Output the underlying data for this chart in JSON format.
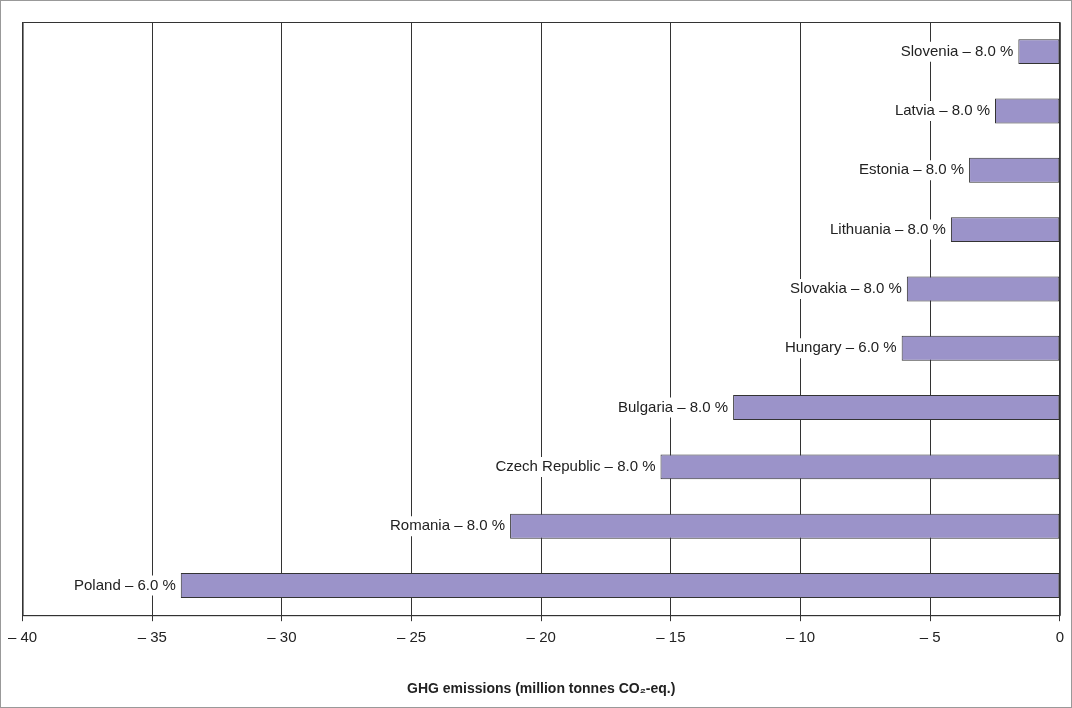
{
  "chart_data": {
    "type": "bar",
    "orientation": "horizontal",
    "categories": [
      "Slovenia – 8.0 %",
      "Latvia – 8.0 %",
      "Estonia – 8.0 %",
      "Lithuania – 8.0 %",
      "Slovakia – 8.0 %",
      "Hungary – 6.0 %",
      "Bulgaria – 8.0 %",
      "Czech Republic – 8.0 %",
      "Romania – 8.0 %",
      "Poland – 6.0 %"
    ],
    "values": [
      -1.6,
      -2.5,
      -3.5,
      -4.2,
      -5.9,
      -6.1,
      -12.6,
      -15.4,
      -21.2,
      -33.9
    ],
    "color": "#9b93c9",
    "xlim": [
      -40,
      0
    ],
    "xticks": [
      {
        "value": -40,
        "label": "– 40"
      },
      {
        "value": -35,
        "label": "– 35"
      },
      {
        "value": -30,
        "label": "– 30"
      },
      {
        "value": -25,
        "label": "– 25"
      },
      {
        "value": -20,
        "label": "– 20"
      },
      {
        "value": -15,
        "label": "– 15"
      },
      {
        "value": -10,
        "label": "– 10"
      },
      {
        "value": -5,
        "label": "– 5"
      },
      0
    ],
    "xlabel": "GHG emissions (million tonnes CO₂-eq.)",
    "grid": "x",
    "legend": false
  }
}
